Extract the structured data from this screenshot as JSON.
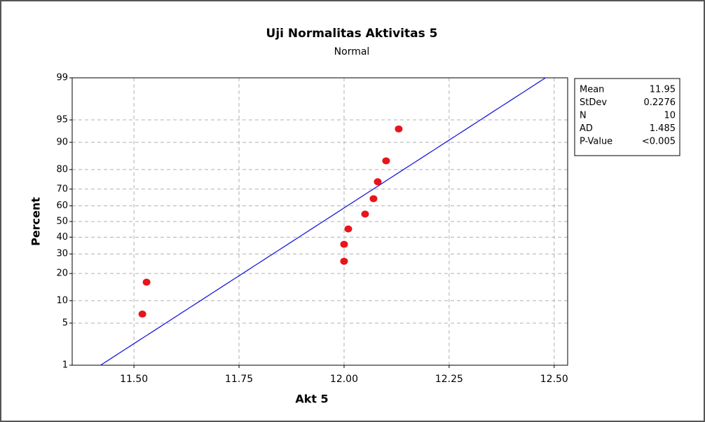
{
  "chart_data": {
    "type": "probability",
    "title": "Uji Normalitas Aktivitas 5",
    "subtitle": "Normal",
    "x_label": "Akt 5",
    "y_label": "Percent",
    "x": [
      11.52,
      11.53,
      12.0,
      12.0,
      12.01,
      12.05,
      12.07,
      12.08,
      12.1,
      12.13
    ],
    "values": [
      6.7,
      16.3,
      26.0,
      35.6,
      45.2,
      54.8,
      64.4,
      74.0,
      83.7,
      93.3
    ],
    "color": "#e8141c",
    "line_color": "#1a1adc",
    "xlim": [
      11.353,
      12.532
    ],
    "ylim": [
      1,
      99
    ],
    "xticks": [
      {
        "value": 11.5,
        "label": "11.50"
      },
      11.75,
      {
        "value": 12,
        "label": "12.00"
      },
      12.25,
      {
        "value": 12.5,
        "label": "12.50"
      }
    ],
    "yticks": [
      1,
      5,
      10,
      20,
      30,
      40,
      50,
      60,
      70,
      80,
      90,
      95,
      99
    ],
    "grid": true,
    "stats": [
      {
        "name": "Mean",
        "value": 11.95
      },
      {
        "name": "StDev",
        "value": 0.2276
      },
      {
        "name": "N",
        "value": 10
      },
      {
        "name": "AD",
        "value": 1.485
      },
      {
        "name": "P-Value",
        "value": "<0.005"
      }
    ]
  }
}
